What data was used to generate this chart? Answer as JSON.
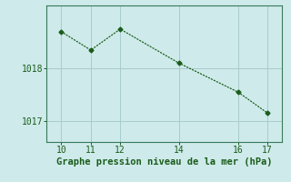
{
  "x": [
    10,
    11,
    12,
    14,
    16,
    17
  ],
  "y": [
    1018.7,
    1018.35,
    1018.75,
    1018.1,
    1017.55,
    1017.15
  ],
  "line_color": "#1a5c1a",
  "marker": "D",
  "marker_size": 2.5,
  "background_color": "#ceeaea",
  "grid_color": "#aacccc",
  "xlabel": "Graphe pression niveau de la mer (hPa)",
  "xlabel_color": "#1a5c1a",
  "tick_color": "#1a5c1a",
  "spine_color": "#3a7a5a",
  "xlim": [
    9.5,
    17.5
  ],
  "ylim": [
    1016.6,
    1019.2
  ],
  "xticks": [
    10,
    11,
    12,
    14,
    16,
    17
  ],
  "yticks": [
    1017,
    1018
  ],
  "ytick_labels": [
    "1017",
    "1018"
  ],
  "tick_fontsize": 7,
  "xlabel_fontsize": 7.5
}
